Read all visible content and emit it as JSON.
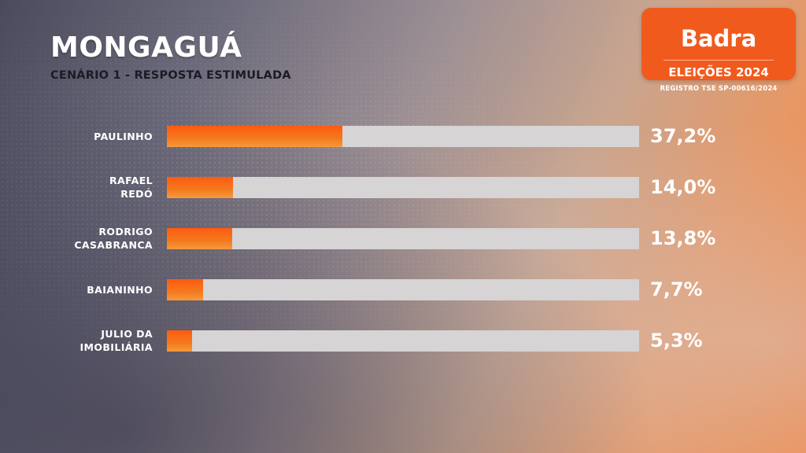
{
  "title": "MONGAGUÁ",
  "subtitle": "CENÁRIO 1 - RESPOSTA ESTIMULADA",
  "logo": {
    "brand": "Badra",
    "subtitle": "ELEIÇÕES 2024",
    "registro": "REGISTRO TSE SP-00616/2024",
    "color": "#f15a1d"
  },
  "colors": {
    "bar_fill": "#f47a1e",
    "bar_track": "#d6d4d4",
    "text": "#ffffff"
  },
  "chart_data": {
    "type": "bar",
    "orientation": "horizontal",
    "categories": [
      "PAULINHO",
      "RAFAEL\nREDÓ",
      "RODRIGO\nCASABRANCA",
      "BAIANINHO",
      "JULIO DA\nIMOBILIÁRIA"
    ],
    "values": [
      37.2,
      14.0,
      13.8,
      7.7,
      5.3
    ],
    "labels": [
      "37,2%",
      "14,0%",
      "13,8%",
      "7,7%",
      "5,3%"
    ],
    "xlim": [
      0,
      100
    ],
    "title": "MONGAGUÁ",
    "subtitle": "CENÁRIO 1 - RESPOSTA ESTIMULADA",
    "grid": false
  }
}
